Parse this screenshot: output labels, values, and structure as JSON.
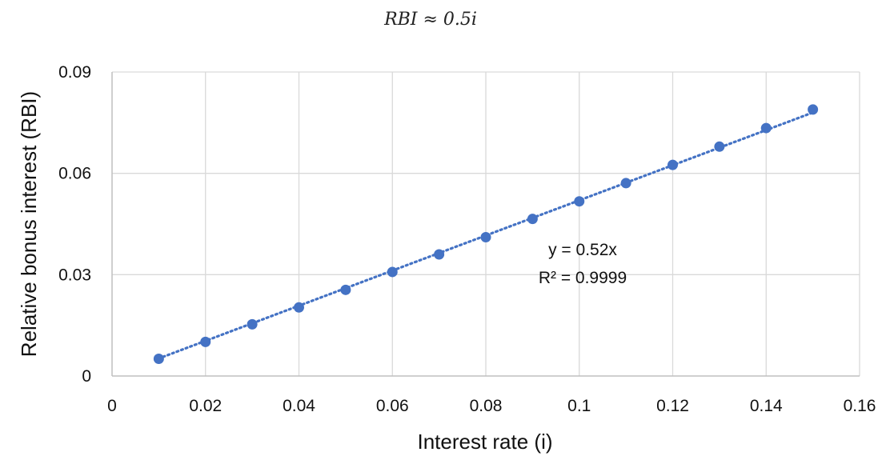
{
  "chart_data": {
    "type": "scatter",
    "title": "RBI ≈ 0.5i",
    "xlabel": "Interest rate (i)",
    "ylabel": "Relative bonus interest (RBI)",
    "xlim": [
      0,
      0.16
    ],
    "ylim": [
      0,
      0.09
    ],
    "x_ticks": [
      "0",
      "0.02",
      "0.04",
      "0.06",
      "0.08",
      "0.1",
      "0.12",
      "0.14",
      "0.16"
    ],
    "y_ticks": [
      "0",
      "0.03",
      "0.06",
      "0.09"
    ],
    "grid": true,
    "series": [
      {
        "color": "#4472C4",
        "points": [
          {
            "x": 0.01,
            "y": 0.0051
          },
          {
            "x": 0.02,
            "y": 0.0101
          },
          {
            "x": 0.03,
            "y": 0.0153
          },
          {
            "x": 0.04,
            "y": 0.0203
          },
          {
            "x": 0.05,
            "y": 0.0255
          },
          {
            "x": 0.06,
            "y": 0.0308
          },
          {
            "x": 0.07,
            "y": 0.036
          },
          {
            "x": 0.08,
            "y": 0.0411
          },
          {
            "x": 0.09,
            "y": 0.0465
          },
          {
            "x": 0.1,
            "y": 0.0517
          },
          {
            "x": 0.11,
            "y": 0.0571
          },
          {
            "x": 0.12,
            "y": 0.0625
          },
          {
            "x": 0.13,
            "y": 0.0679
          },
          {
            "x": 0.14,
            "y": 0.0734
          },
          {
            "x": 0.15,
            "y": 0.0789
          }
        ]
      }
    ],
    "trendline": {
      "type": "linear",
      "slope": 0.52,
      "intercept": 0,
      "style": "dotted",
      "color": "#4472C4",
      "equation_label": "y = 0.52x",
      "r2_label": "R² = 0.9999"
    }
  }
}
